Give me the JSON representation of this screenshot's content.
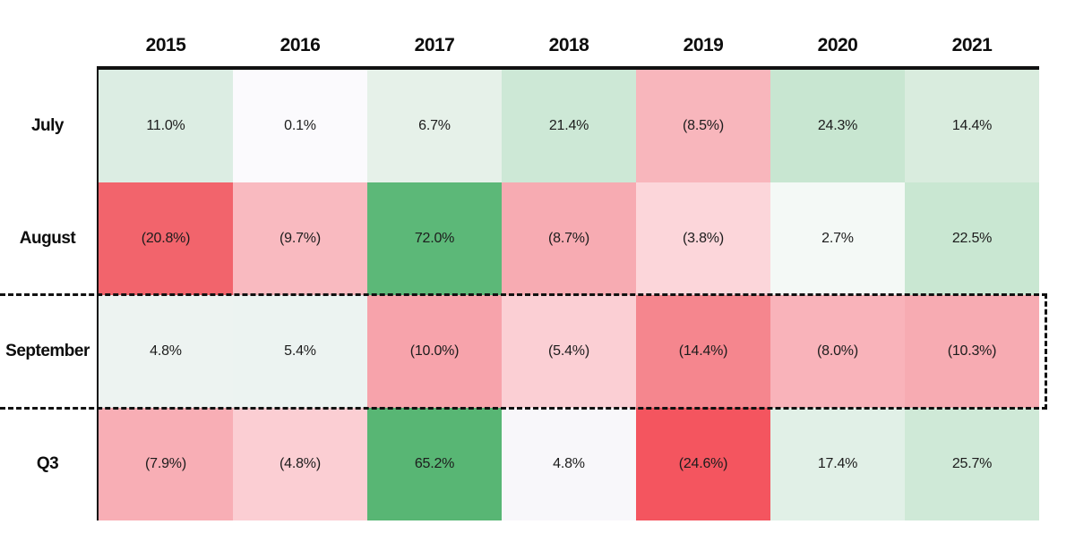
{
  "chart_data": {
    "type": "heatmap",
    "title": "",
    "columns": [
      "2015",
      "2016",
      "2017",
      "2018",
      "2019",
      "2020",
      "2021"
    ],
    "rows": [
      "July",
      "August",
      "September",
      "Q3"
    ],
    "values": [
      [
        11.0,
        0.1,
        6.7,
        21.4,
        -8.5,
        24.3,
        14.4
      ],
      [
        -20.8,
        -9.7,
        72.0,
        -8.7,
        -3.8,
        2.7,
        22.5
      ],
      [
        4.8,
        5.4,
        -10.0,
        -5.4,
        -14.4,
        -8.0,
        -10.3
      ],
      [
        -7.9,
        -4.8,
        65.2,
        4.8,
        -24.6,
        17.4,
        25.7
      ]
    ],
    "labels": [
      [
        "11.0%",
        "0.1%",
        "6.7%",
        "21.4%",
        "(8.5%)",
        "24.3%",
        "14.4%"
      ],
      [
        "(20.8%)",
        "(9.7%)",
        "72.0%",
        "(8.7%)",
        "(3.8%)",
        "2.7%",
        "22.5%"
      ],
      [
        "4.8%",
        "5.4%",
        "(10.0%)",
        "(5.4%)",
        "(14.4%)",
        "(8.0%)",
        "(10.3%)"
      ],
      [
        "(7.9%)",
        "(4.8%)",
        "65.2%",
        "4.8%",
        "(24.6%)",
        "17.4%",
        "25.7%"
      ]
    ],
    "cell_colors": [
      [
        "#dcede3",
        "#fbfafd",
        "#e6f1e9",
        "#cde8d6",
        "#f8b6bc",
        "#c8e6d1",
        "#d9ecde"
      ],
      [
        "#f2646c",
        "#f9bac0",
        "#5cb878",
        "#f7abb2",
        "#fcd6da",
        "#f4f9f6",
        "#c9e7d2"
      ],
      [
        "#edf3f1",
        "#ecf3f1",
        "#f7a3ab",
        "#fbcfd4",
        "#f5868e",
        "#f9b3ba",
        "#f7abb2"
      ],
      [
        "#f8aeb5",
        "#fbced3",
        "#58b674",
        "#f8f7fa",
        "#f4555f",
        "#e1f0e7",
        "#cfe9d7"
      ]
    ],
    "negative_format": "parentheses",
    "highlighted_row": "September",
    "legend_position": "none",
    "grid": false,
    "colors": {
      "positive_strong": "#58b674",
      "negative_strong": "#f4555f",
      "neutral": "#ffffff",
      "text": "#1c1c1c",
      "border": "#111111"
    }
  }
}
